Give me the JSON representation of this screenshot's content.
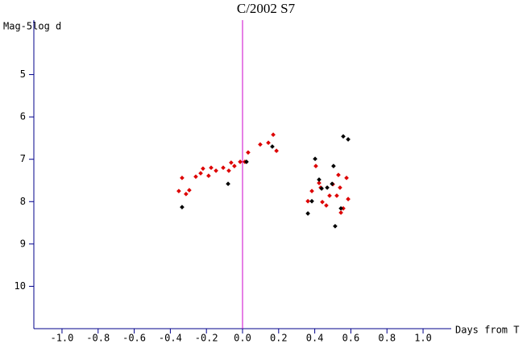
{
  "chart_data": {
    "type": "scatter",
    "title": "C/2002 S7",
    "y_label": "Mag-5log d",
    "x_label": "Days from T",
    "xlim": [
      -1.156,
      1.156
    ],
    "ylim": [
      11,
      4
    ],
    "xticks": [
      {
        "value": -1.0,
        "label": "-1.0"
      },
      {
        "value": -0.8,
        "label": "-0.8"
      },
      {
        "value": -0.6,
        "label": "-0.6"
      },
      {
        "value": -0.4,
        "label": "-0.4"
      },
      {
        "value": -0.2,
        "label": "-0.2"
      },
      {
        "value": 0,
        "label": "0.0"
      },
      {
        "value": 0.2,
        "label": "0.2"
      },
      {
        "value": 0.4,
        "label": "0.4"
      },
      {
        "value": 0.6,
        "label": "0.6"
      },
      {
        "value": 0.8,
        "label": "0.8"
      },
      {
        "value": 1.0,
        "label": "1.0"
      }
    ],
    "yticks": [
      5,
      6,
      7,
      8,
      9,
      10
    ],
    "axis_color": "#00008b",
    "vline": {
      "x": 0,
      "color": "#cc00cc"
    },
    "series": [
      {
        "color": "#dd0000",
        "x": [
          -0.353,
          -0.335,
          -0.313,
          -0.295,
          -0.259,
          -0.232,
          -0.219,
          -0.188,
          -0.174,
          -0.147,
          -0.107,
          -0.076,
          -0.063,
          -0.045,
          -0.013,
          0.013,
          0.031,
          0.098,
          0.143,
          0.17,
          0.188,
          0.362,
          0.384,
          0.406,
          0.424,
          0.433,
          0.442,
          0.464,
          0.482,
          0.5,
          0.522,
          0.531,
          0.54,
          0.545,
          0.558,
          0.576,
          0.585
        ],
        "values": [
          7.75,
          7.44,
          7.82,
          7.73,
          7.41,
          7.33,
          7.22,
          7.39,
          7.2,
          7.27,
          7.2,
          7.27,
          7.08,
          7.16,
          7.06,
          7.06,
          6.84,
          6.65,
          6.61,
          6.42,
          6.8,
          7.99,
          7.75,
          7.16,
          7.56,
          7.67,
          8.01,
          8.09,
          7.86,
          7.59,
          7.86,
          7.37,
          7.67,
          8.26,
          8.16,
          7.44,
          7.94
        ]
      },
      {
        "color": "#000000",
        "x": [
          -0.335,
          -0.08,
          0.022,
          0.165,
          0.362,
          0.384,
          0.402,
          0.424,
          0.438,
          0.469,
          0.496,
          0.504,
          0.513,
          0.545,
          0.558,
          0.585
        ],
        "values": [
          8.13,
          7.58,
          7.06,
          6.7,
          8.28,
          7.99,
          6.99,
          7.48,
          7.69,
          7.67,
          7.58,
          7.16,
          8.58,
          8.16,
          6.46,
          6.53
        ]
      }
    ]
  }
}
